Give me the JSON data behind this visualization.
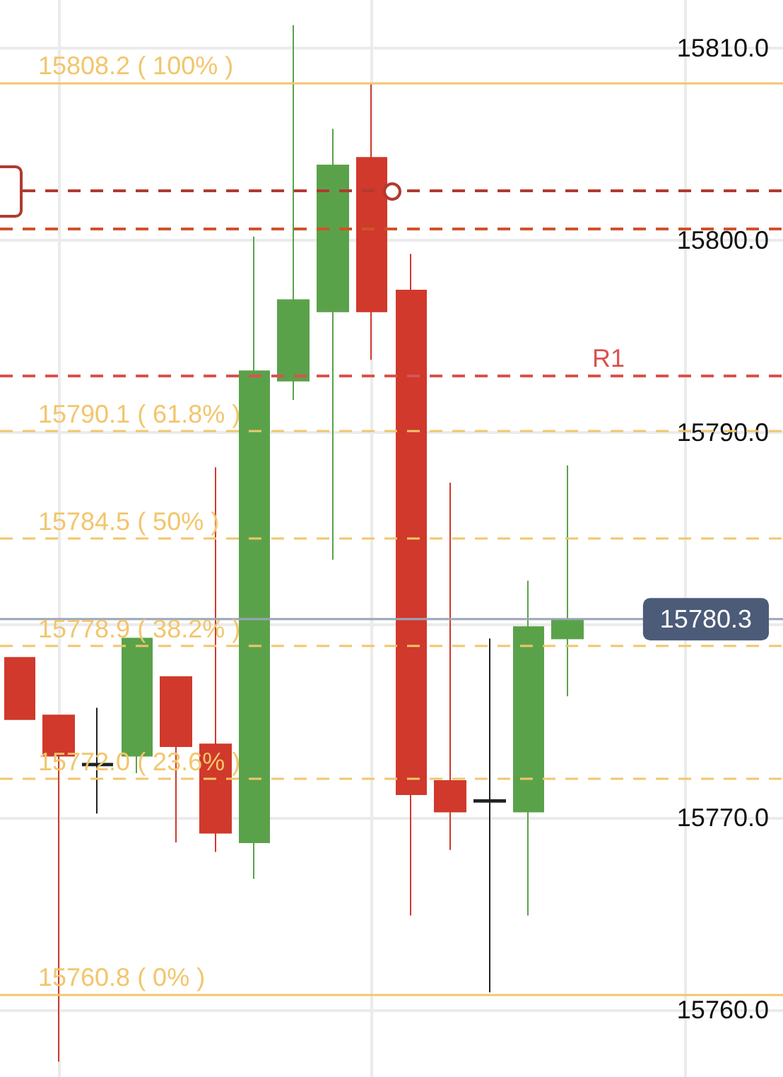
{
  "chart_data": {
    "type": "candlestick",
    "categories": [
      null,
      null,
      null,
      null,
      null,
      null,
      null,
      null,
      null,
      null,
      null,
      null,
      null,
      null,
      null,
      null,
      null,
      null,
      null,
      null
    ],
    "ohlc": [
      [
        15778.3,
        15778.3,
        15775.1,
        15775.1
      ],
      [
        15775.3,
        15775.3,
        15757.3,
        15773.2
      ],
      [
        15772.7,
        15775.7,
        15770.2,
        15772.8
      ],
      [
        15773.2,
        15779.3,
        15772.3,
        15779.3
      ],
      [
        15777.3,
        15777.3,
        15768.7,
        15773.7
      ],
      [
        15773.8,
        15788.2,
        15768.2,
        15769.2
      ],
      [
        15768.7,
        15800.2,
        15766.8,
        15793.2
      ],
      [
        15792.7,
        15811.2,
        15791.7,
        15796.9
      ],
      [
        15796.3,
        15805.8,
        15783.4,
        15803.9
      ],
      [
        15804.3,
        15808.2,
        15793.8,
        15796.3
      ],
      [
        15797.4,
        15799.3,
        15764.9,
        15771.2
      ],
      [
        15771.9,
        15787.4,
        15768.3,
        15770.3
      ],
      [
        15770.8,
        15779.3,
        15760.9,
        15770.9
      ],
      [
        15770.3,
        15782.3,
        15764.9,
        15779.9
      ],
      [
        15779.3,
        15788.3,
        15776.3,
        15780.3
      ],
      null,
      null,
      null,
      null,
      null
    ],
    "colors": [
      "#d0392b",
      "#d0392b",
      "#222222",
      "#5aa24a",
      "#d0392b",
      "#d0392b",
      "#5aa24a",
      "#5aa24a",
      "#5aa24a",
      "#d0392b",
      "#d0392b",
      "#d0392b",
      "#222222",
      "#5aa24a",
      "#5aa24a",
      null,
      null,
      null,
      null,
      null
    ],
    "ylim": [
      15756.5,
      15812.5
    ],
    "yticks": [
      {
        "value": 15760,
        "label": "15760.0"
      },
      {
        "value": 15770,
        "label": "15770.0"
      },
      {
        "value": 15780,
        "label": null
      },
      {
        "value": 15790,
        "label": "15790.0"
      },
      {
        "value": 15800,
        "label": "15800.0"
      },
      {
        "value": 15810,
        "label": "15810.0"
      }
    ],
    "ref_lines": [
      {
        "axis": "y",
        "value": 15808.2,
        "label": "15808.2 ( 100% )",
        "color": "#f2c66d",
        "line_style": "solid"
      },
      {
        "axis": "y",
        "value": 15790.1,
        "label": "15790.1 ( 61.8% )",
        "color": "#f2c66d",
        "line_style": "dashed"
      },
      {
        "axis": "y",
        "value": 15784.5,
        "label": "15784.5 ( 50% )",
        "color": "#f2c66d",
        "line_style": "dashed"
      },
      {
        "axis": "y",
        "value": 15778.9,
        "label": "15778.9 ( 38.2% )",
        "color": "#f2c66d",
        "line_style": "dashed"
      },
      {
        "axis": "y",
        "value": 15772.0,
        "label": "15772.0 ( 23.6% )",
        "color": "#f2c66d",
        "line_style": "dashed"
      },
      {
        "axis": "y",
        "value": 15760.8,
        "label": "15760.8 ( 0% )",
        "color": "#f2c66d",
        "line_style": "solid"
      },
      {
        "axis": "y",
        "value": 15793.0,
        "label": "R1",
        "color": "#d9534f",
        "line_style": "dashed"
      },
      {
        "axis": "y",
        "value": 15802.6,
        "color": "#b03a30",
        "line_style": "dashed"
      },
      {
        "axis": "y",
        "value": 15800.6,
        "color": "#d0522a",
        "line_style": "dashed"
      },
      {
        "axis": "y",
        "value": 15780.3,
        "label": "15780.3",
        "color": "#9aa5b8",
        "line_style": "solid"
      }
    ],
    "grid": true,
    "tick_labels": "y"
  }
}
